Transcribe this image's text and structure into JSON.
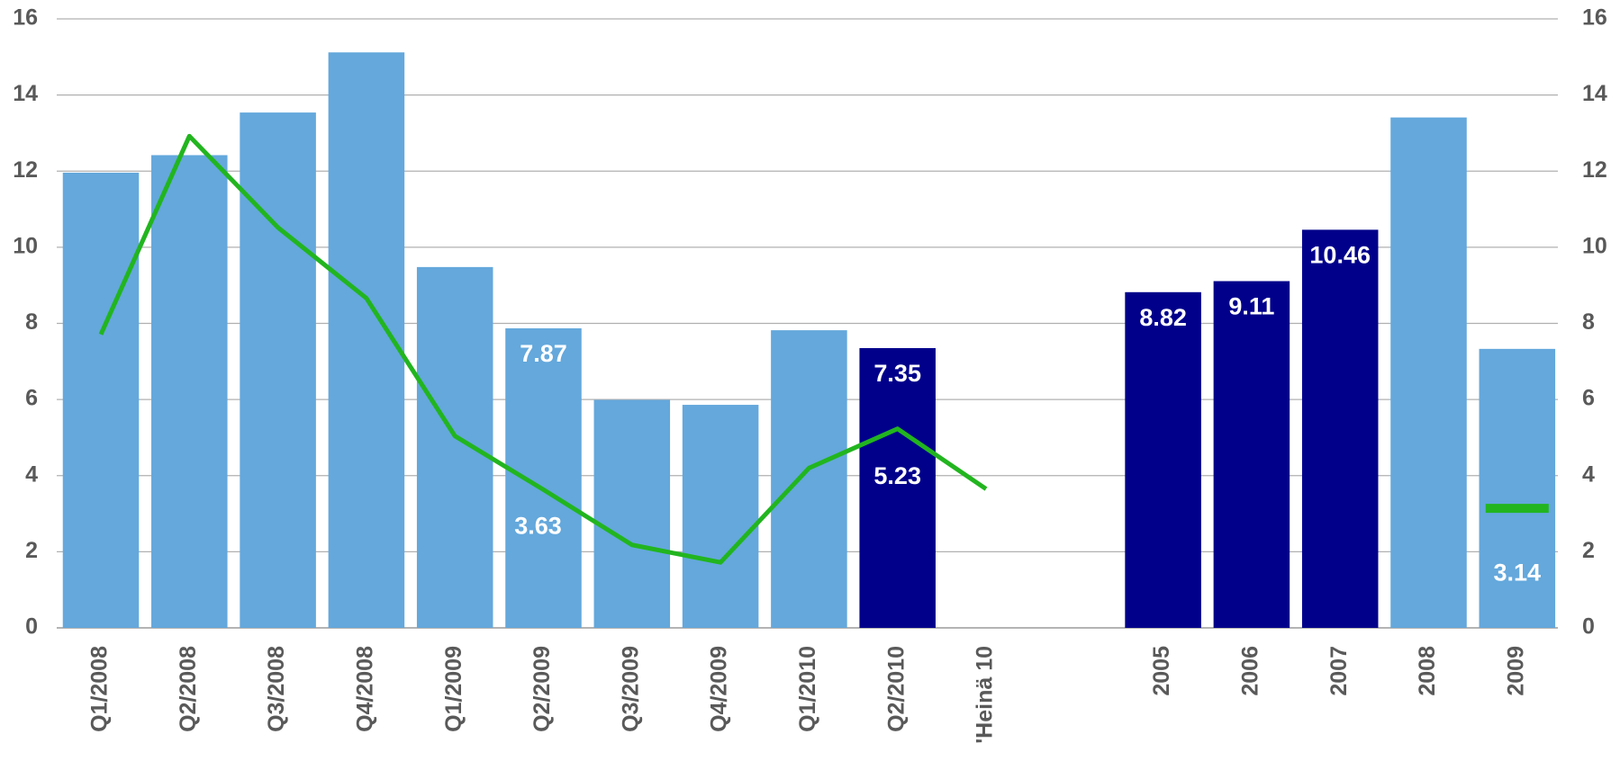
{
  "chart_data": {
    "type": "bar",
    "categories": [
      "Q1/2008",
      "Q2/2008",
      "Q3/2008",
      "Q4/2008",
      "Q1/2009",
      "Q2/2009",
      "Q3/2009",
      "Q4/2009",
      "Q1/2010",
      "Q2/2010",
      "'Heinä 10",
      null,
      "2005",
      "2006",
      "2007",
      "2008",
      "2009"
    ],
    "series": [
      {
        "type": "bar",
        "values": [
          11.96,
          12.42,
          13.54,
          15.12,
          9.48,
          7.87,
          5.99,
          5.86,
          7.82,
          7.35,
          null,
          null,
          8.82,
          9.11,
          10.46,
          13.41,
          7.33
        ],
        "value_labels": [
          null,
          null,
          null,
          null,
          null,
          "7.87",
          null,
          null,
          null,
          "7.35",
          null,
          null,
          "8.82",
          "9.11",
          "10.46",
          null,
          null
        ],
        "colors": [
          "#64a8dc",
          "#64a8dc",
          "#64a8dc",
          "#64a8dc",
          "#64a8dc",
          "#64a8dc",
          "#64a8dc",
          "#64a8dc",
          "#64a8dc",
          "#00008b",
          "#64a8dc",
          "#64a8dc",
          "#00008b",
          "#00008b",
          "#00008b",
          "#64a8dc",
          "#64a8dc"
        ]
      },
      {
        "type": "line",
        "color": "#22b51f",
        "values": [
          7.71,
          12.92,
          10.52,
          8.66,
          5.04,
          3.63,
          2.18,
          1.72,
          4.2,
          5.23,
          3.65,
          null,
          null,
          null,
          null,
          null,
          3.14
        ],
        "value_labels": [
          null,
          null,
          null,
          null,
          null,
          "3.63",
          null,
          null,
          null,
          "5.23",
          null,
          null,
          null,
          null,
          null,
          null,
          "3.14"
        ]
      }
    ],
    "ylim": [
      0,
      16
    ],
    "yticks": [
      0,
      2,
      4,
      6,
      8,
      10,
      12,
      14,
      16
    ],
    "y2lim": [
      0,
      16
    ],
    "y2ticks": [
      0,
      2,
      4,
      6,
      8,
      10,
      12,
      14,
      16
    ],
    "grid": true
  }
}
